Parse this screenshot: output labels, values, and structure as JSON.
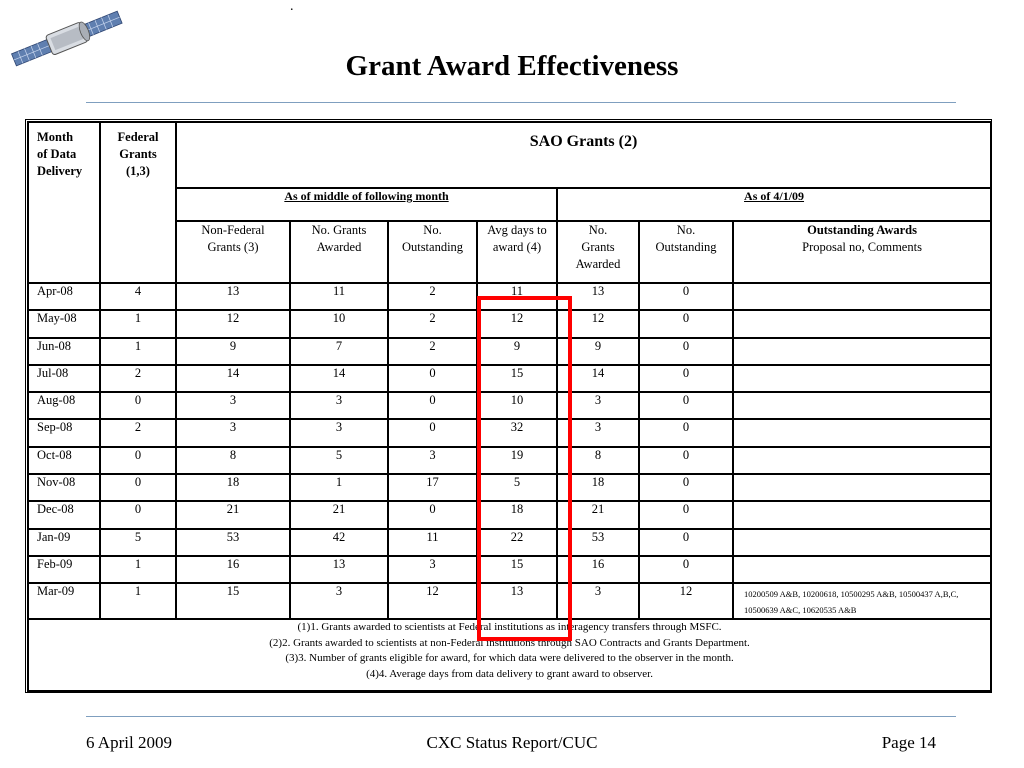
{
  "title": "Grant Award Effectiveness",
  "stray_mark": ".",
  "table": {
    "col_month": [
      "Month",
      "of Data",
      "Delivery"
    ],
    "col_federal": [
      "Federal",
      "Grants",
      "(1,3)"
    ],
    "sao_header": "SAO Grants (2)",
    "as_of_middle": "As of middle of following month",
    "as_of_date": "As of 4/1/09",
    "sub_headers": {
      "non_federal": [
        "Non-Federal",
        "Grants (3)"
      ],
      "awarded": [
        "No. Grants",
        "Awarded"
      ],
      "outstanding": [
        "No.",
        "Outstanding"
      ],
      "avg_days": [
        "Avg days to",
        "award (4)"
      ],
      "grants_awarded_2": [
        "No.",
        "Grants",
        "Awarded"
      ],
      "outstanding_2": [
        "No.",
        "Outstanding"
      ],
      "outstanding_awards": "Outstanding Awards",
      "proposal": "Proposal no, Comments"
    },
    "rows": [
      [
        "Apr-08",
        "4",
        "13",
        "11",
        "2",
        "11",
        "13",
        "0",
        ""
      ],
      [
        "May-08",
        "1",
        "12",
        "10",
        "2",
        "12",
        "12",
        "0",
        ""
      ],
      [
        "Jun-08",
        "1",
        "9",
        "7",
        "2",
        "9",
        "9",
        "0",
        ""
      ],
      [
        "Jul-08",
        "2",
        "14",
        "14",
        "0",
        "15",
        "14",
        "0",
        ""
      ],
      [
        "Aug-08",
        "0",
        "3",
        "3",
        "0",
        "10",
        "3",
        "0",
        ""
      ],
      [
        "Sep-08",
        "2",
        "3",
        "3",
        "0",
        "32",
        "3",
        "0",
        ""
      ],
      [
        "Oct-08",
        "0",
        "8",
        "5",
        "3",
        "19",
        "8",
        "0",
        ""
      ],
      [
        "Nov-08",
        "0",
        "18",
        "1",
        "17",
        "5",
        "18",
        "0",
        ""
      ],
      [
        "Dec-08",
        "0",
        "21",
        "21",
        "0",
        "18",
        "21",
        "0",
        ""
      ],
      [
        "Jan-09",
        "5",
        "53",
        "42",
        "11",
        "22",
        "53",
        "0",
        ""
      ],
      [
        "Feb-09",
        "1",
        "16",
        "13",
        "3",
        "15",
        "16",
        "0",
        ""
      ],
      [
        "Mar-09",
        "1",
        "15",
        "3",
        "12",
        "13",
        "3",
        "12",
        "10200509 A&B, 10200618, 10500295 A&B, 10500437 A,B,C, 10500639 A&C, 10620535 A&B"
      ]
    ],
    "notes": [
      "(1)1. Grants awarded to scientists at Federal institutions as interagency transfers through MSFC.",
      "(2)2. Grants awarded to scientists at non-Federal institutions through SAO Contracts and Grants Department.",
      "(3)3. Number of grants eligible for award, for which data were delivered to the observer in the month.",
      "(4)4. Average days from data delivery to grant award to observer."
    ]
  },
  "footer": {
    "date": "6 April 2009",
    "report": "CXC Status Report/CUC",
    "page": "Page 14"
  },
  "colors": {
    "highlight": "#ff0000",
    "rule": "#7f9fbf"
  },
  "icons": {
    "logo": "satellite-icon"
  }
}
